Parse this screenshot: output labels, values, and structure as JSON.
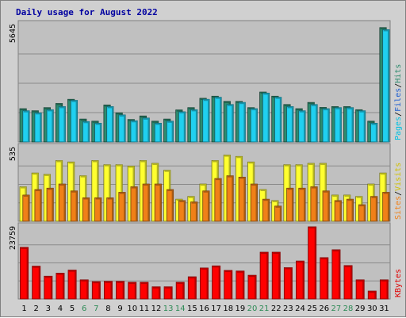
{
  "chart_data": {
    "type": "bar",
    "title": "Daily usage for August 2022",
    "categories": [
      "1",
      "2",
      "3",
      "4",
      "5",
      "6",
      "7",
      "8",
      "9",
      "10",
      "11",
      "12",
      "13",
      "14",
      "15",
      "16",
      "17",
      "18",
      "19",
      "20",
      "21",
      "22",
      "23",
      "24",
      "25",
      "26",
      "27",
      "28",
      "29",
      "30",
      "31"
    ],
    "weekend_days": [
      "6",
      "7",
      "13",
      "14",
      "20",
      "21",
      "27",
      "28"
    ],
    "panels": [
      {
        "name": "hits-files-pages",
        "max_label": "5645",
        "ymax": 5645,
        "legend": [
          "Pages",
          "/",
          "Files",
          "/",
          "Hits"
        ],
        "series": [
          {
            "name": "Hits",
            "color": "#2e8b6e",
            "values": [
              1600,
              1500,
              1650,
              1850,
              2050,
              1100,
              1000,
              1780,
              1400,
              1080,
              1250,
              1000,
              1100,
              1540,
              1650,
              2100,
              2200,
              1950,
              1950,
              1650,
              2400,
              2200,
              1800,
              1600,
              1900,
              1660,
              1700,
              1700,
              1550,
              1000,
              5500
            ]
          },
          {
            "name": "Pages",
            "color": "#20d0f0",
            "values": [
              1500,
              1400,
              1550,
              1700,
              2000,
              980,
              900,
              1700,
              1300,
              1020,
              1150,
              900,
              1000,
              1450,
              1550,
              2050,
              2150,
              1800,
              1900,
              1600,
              2350,
              2150,
              1700,
              1500,
              1800,
              1600,
              1650,
              1650,
              1500,
              900,
              5400
            ]
          }
        ]
      },
      {
        "name": "visits-sites",
        "max_label": "535",
        "ymax": 535,
        "legend": [
          "Sites",
          "/",
          "Visits"
        ],
        "series": [
          {
            "name": "Visits",
            "color": "#ffff30",
            "values": [
              250,
              350,
              340,
              440,
              430,
              330,
              440,
              410,
              410,
              400,
              440,
              420,
              370,
              160,
              180,
              270,
              440,
              480,
              470,
              430,
              230,
              150,
              410,
              410,
              420,
              420,
              190,
              190,
              180,
              270,
              350
            ]
          },
          {
            "name": "Sites",
            "color": "#f08018",
            "values": [
              190,
              230,
              240,
              270,
              220,
              170,
              170,
              170,
              210,
              250,
              270,
              270,
              230,
              150,
              140,
              220,
              310,
              330,
              320,
              270,
              160,
              110,
              240,
              240,
              250,
              220,
              150,
              160,
              120,
              180,
              210
            ]
          }
        ]
      },
      {
        "name": "kbytes",
        "max_label": "23759",
        "ymax": 23759,
        "legend": [
          "KBytes"
        ],
        "series": [
          {
            "name": "KBytes",
            "color": "#ff0000",
            "values": [
              17000,
              10800,
              7500,
              8500,
              9500,
              6300,
              5700,
              5800,
              5800,
              5500,
              5500,
              4000,
              4000,
              5500,
              7300,
              10200,
              10900,
              9400,
              9200,
              7800,
              15400,
              15400,
              10300,
              12500,
              23759,
              13600,
              16200,
              11000,
              6300,
              2600,
              6300
            ]
          }
        ]
      }
    ]
  }
}
